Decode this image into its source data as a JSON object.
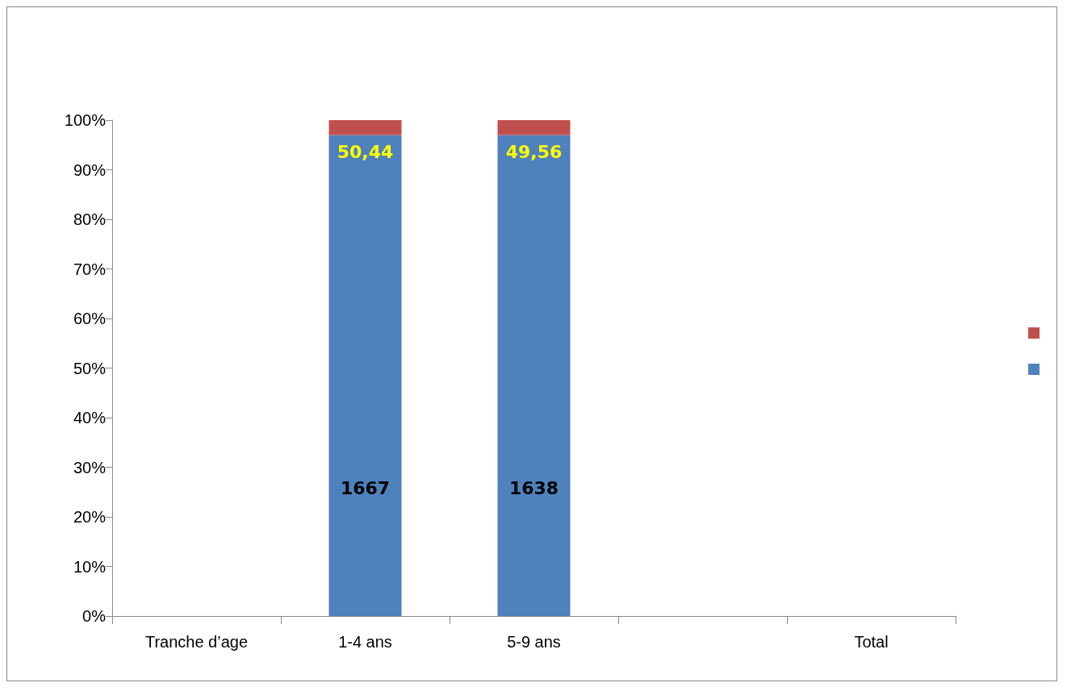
{
  "chart_data": {
    "type": "bar",
    "stacked": true,
    "categories": [
      "Tranche d’age",
      "1-4 ans",
      "5-9 ans",
      null,
      "Total"
    ],
    "series": [
      {
        "color": "#4f81bd",
        "values": [
          null,
          97,
          97,
          null,
          null
        ]
      },
      {
        "color": "#c0504d",
        "values": [
          null,
          3,
          3,
          null,
          null
        ]
      }
    ],
    "annotations": [
      "1667",
      "1638",
      "50,44",
      "49,56"
    ],
    "ylim": [
      0,
      100
    ],
    "yticks": [
      {
        "value": 0,
        "label": "0%"
      },
      {
        "value": 10,
        "label": "10%"
      },
      {
        "value": 20,
        "label": "20%"
      },
      {
        "value": 30,
        "label": "30%"
      },
      {
        "value": 40,
        "label": "40%"
      },
      {
        "value": 50,
        "label": "50%"
      },
      {
        "value": 60,
        "label": "60%"
      },
      {
        "value": 70,
        "label": "70%"
      },
      {
        "value": 80,
        "label": "80%"
      },
      {
        "value": 90,
        "label": "90%"
      },
      {
        "value": 100,
        "label": "100%"
      }
    ],
    "grid": false
  }
}
